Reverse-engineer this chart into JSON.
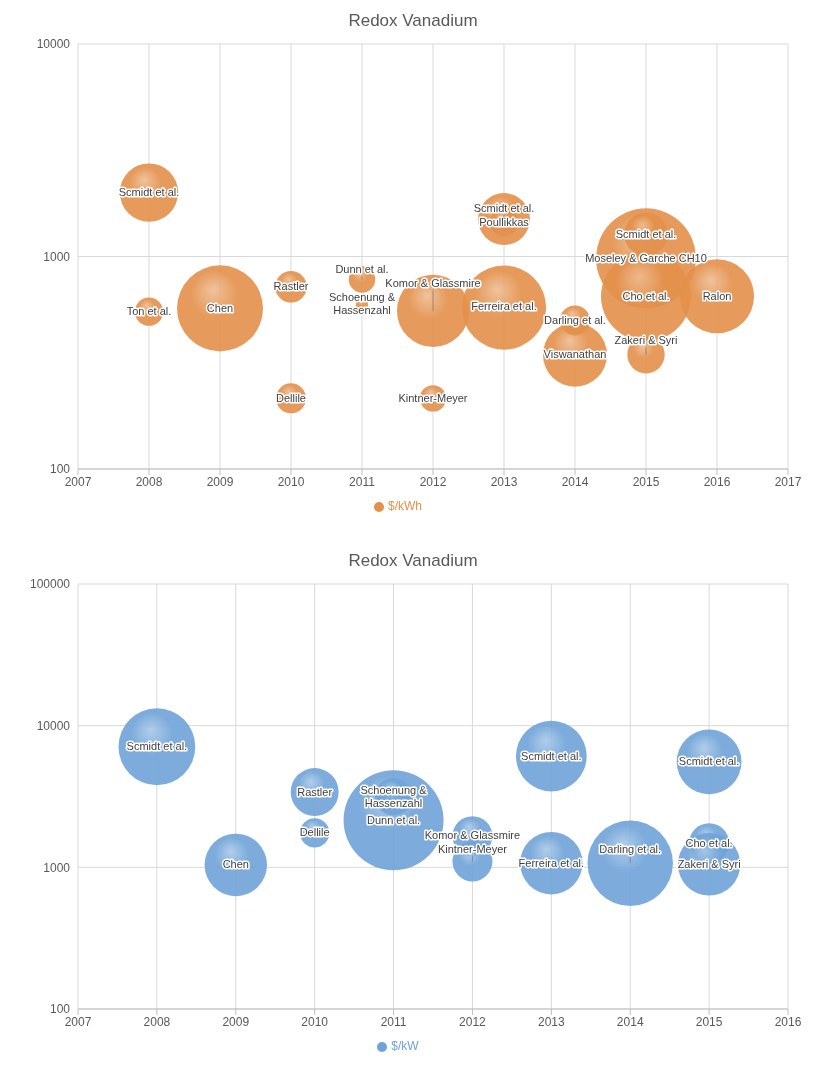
{
  "chart_data": [
    {
      "type": "bubble",
      "title": "Redox Vanadium",
      "x": [
        2008,
        2008,
        2009,
        2010,
        2010,
        2011,
        2011,
        2012,
        2012,
        2013,
        2013,
        2013,
        2014,
        2014,
        2015,
        2015,
        2015,
        2015,
        2016
      ],
      "series": [
        {
          "name": "$/kWh",
          "color": "#e3904a",
          "values": [
            2000,
            550,
            570,
            720,
            215,
            780,
            595,
            555,
            215,
            1500,
            1450,
            575,
            345,
            500,
            980,
            1270,
            650,
            345,
            650
          ],
          "sizes": [
            0.34,
            0.08,
            0.74,
            0.1,
            0.09,
            0.07,
            0.015,
            0.52,
            0.07,
            0.27,
            0.08,
            0.71,
            0.41,
            0.09,
            1,
            0.19,
            0.81,
            0.14,
            0.55
          ]
        }
      ],
      "xlim": [
        2007,
        2017
      ],
      "xticks": [
        2007,
        2008,
        2009,
        2010,
        2011,
        2012,
        2013,
        2014,
        2015,
        2016,
        2017
      ],
      "ylim": [
        100,
        10000
      ],
      "yticks": [
        100,
        1000,
        10000
      ],
      "log": true,
      "grid": true,
      "legend": "bottom",
      "annotations": [
        {
          "text": "Scmidt et al.",
          "x": 2008,
          "y": 2000
        },
        {
          "text": "Ton et al.",
          "x": 2008,
          "y": 550
        },
        {
          "text": "Chen",
          "x": 2009,
          "y": 570
        },
        {
          "text": "Rastler",
          "x": 2010,
          "y": 720
        },
        {
          "text": "Dellile",
          "x": 2010,
          "y": 215
        },
        {
          "text": "Dunn et al.",
          "x": 2011,
          "y": 780
        },
        {
          "text": "Schoenung & Hassenzahl",
          "x": 2011,
          "y": 595
        },
        {
          "text": "Komor & Glassmire",
          "x": 2012,
          "y": 555
        },
        {
          "text": "Kintner-Meyer",
          "x": 2012,
          "y": 215
        },
        {
          "text": "Scmidt et al.",
          "x": 2013,
          "y": 1500
        },
        {
          "text": "Poullikkas",
          "x": 2013,
          "y": 1450
        },
        {
          "text": "Ferreira et al.",
          "x": 2013,
          "y": 575
        },
        {
          "text": "Viswanathan",
          "x": 2014,
          "y": 345
        },
        {
          "text": "Darling et al.",
          "x": 2014,
          "y": 500
        },
        {
          "text": "Moseley & Garche CH10",
          "x": 2015,
          "y": 980
        },
        {
          "text": "Scmidt et al.",
          "x": 2015,
          "y": 1270
        },
        {
          "text": "Cho et al.",
          "x": 2015,
          "y": 650
        },
        {
          "text": "Zakeri & Syri",
          "x": 2015,
          "y": 345
        },
        {
          "text": "Ralon",
          "x": 2016,
          "y": 650
        }
      ]
    },
    {
      "type": "bubble",
      "title": "Redox Vanadium",
      "x": [
        2008,
        2009,
        2010,
        2010,
        2011,
        2011,
        2012,
        2012,
        2013,
        2013,
        2014,
        2015,
        2015,
        2015
      ],
      "series": [
        {
          "name": "$/kW",
          "color": "#6fa3d8",
          "values": [
            7100,
            1040,
            3400,
            1750,
            2150,
            3150,
            1660,
            1100,
            6100,
            1070,
            1070,
            5550,
            1480,
            1050
          ],
          "sizes": [
            0.59,
            0.39,
            0.23,
            0.085,
            1,
            0.14,
            0.16,
            0.16,
            0.5,
            0.39,
            0.73,
            0.42,
            0.16,
            0.39
          ]
        }
      ],
      "xlim": [
        2007,
        2016
      ],
      "xticks": [
        2007,
        2008,
        2009,
        2010,
        2011,
        2012,
        2013,
        2014,
        2015,
        2016
      ],
      "ylim": [
        100,
        100000
      ],
      "yticks": [
        100,
        1000,
        10000,
        100000
      ],
      "log": true,
      "grid": true,
      "legend": "bottom",
      "annotations": [
        {
          "text": "Scmidt et al.",
          "x": 2008,
          "y": 7100
        },
        {
          "text": "Chen",
          "x": 2009,
          "y": 1040
        },
        {
          "text": "Rastler",
          "x": 2010,
          "y": 3400
        },
        {
          "text": "Dellile",
          "x": 2010,
          "y": 1750
        },
        {
          "text": "Dunn et al.",
          "x": 2011,
          "y": 2150
        },
        {
          "text": "Schoenung & Hassenzahl",
          "x": 2011,
          "y": 3150
        },
        {
          "text": "Komor & Glassmire",
          "x": 2012,
          "y": 1660
        },
        {
          "text": "Kintner-Meyer",
          "x": 2012,
          "y": 1100
        },
        {
          "text": "Scmidt et al.",
          "x": 2013,
          "y": 6100
        },
        {
          "text": "Ferreira et al.",
          "x": 2013,
          "y": 1070
        },
        {
          "text": "Darling et al.",
          "x": 2014,
          "y": 1070
        },
        {
          "text": "Scmidt et al.",
          "x": 2015,
          "y": 5550
        },
        {
          "text": "Cho et al.",
          "x": 2015,
          "y": 1480
        },
        {
          "text": "Zakeri & Syri",
          "x": 2015,
          "y": 1050
        }
      ]
    }
  ]
}
